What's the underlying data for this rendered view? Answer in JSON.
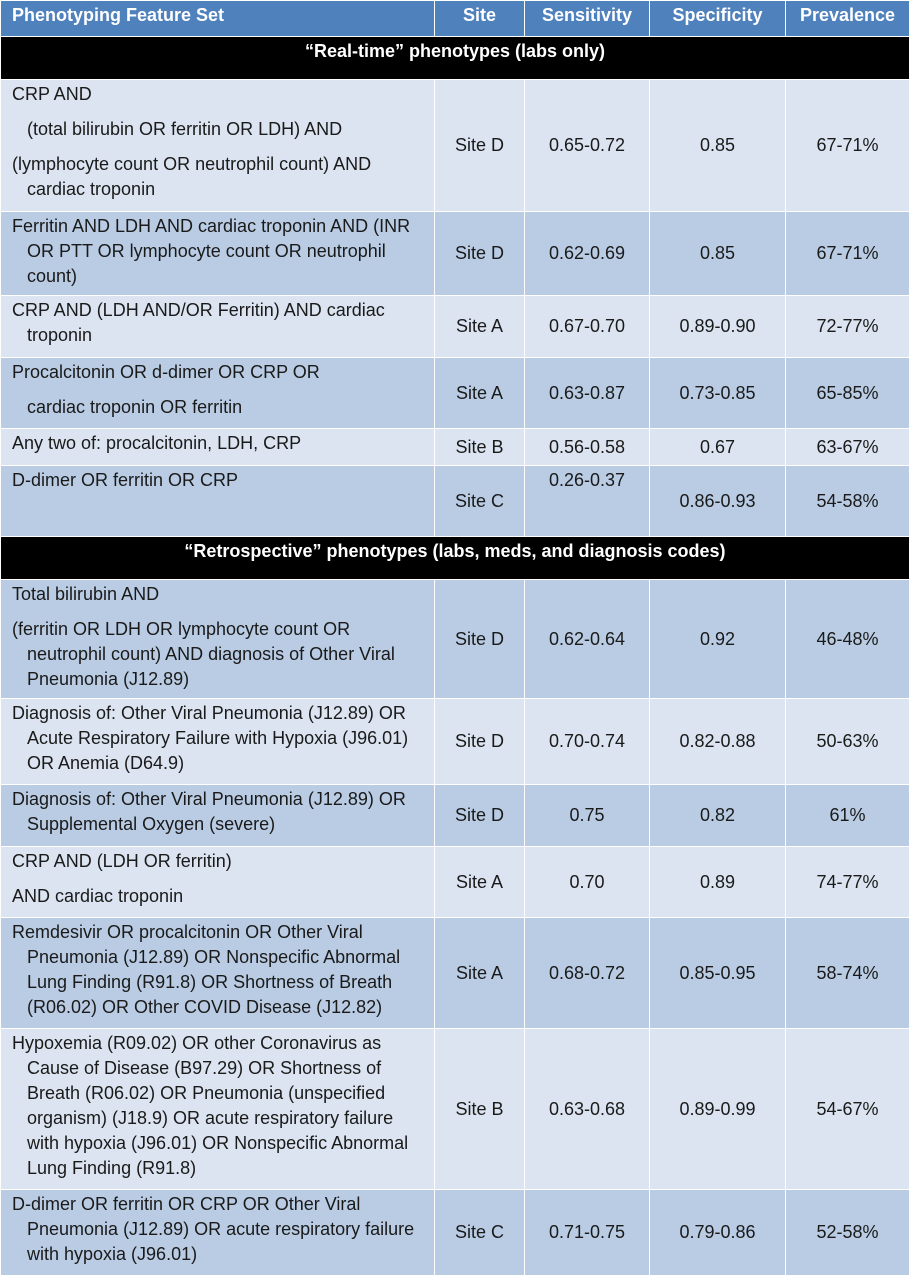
{
  "header": {
    "feature": "Phenotyping Feature Set",
    "site": "Site",
    "sensitivity": "Sensitivity",
    "specificity": "Specificity",
    "prevalence": "Prevalence"
  },
  "sections": {
    "realtime": "“Real-time” phenotypes (labs only)",
    "retro": "“Retrospective” phenotypes (labs, meds, and diagnosis codes)"
  },
  "rows": [
    {
      "f": [
        "CRP AND",
        "(total bilirubin OR ferritin OR LDH) AND",
        "(lymphocyte count OR neutrophil count) AND cardiac troponin"
      ],
      "site": "Site D",
      "sens": "0.65-0.72",
      "spec": "0.85",
      "prev": "67-71%"
    },
    {
      "f": [
        "Ferritin AND LDH AND cardiac troponin AND (INR OR PTT OR lymphocyte count OR neutrophil count)"
      ],
      "site": "Site D",
      "sens": "0.62-0.69",
      "spec": "0.85",
      "prev": "67-71%"
    },
    {
      "f": [
        "CRP AND (LDH AND/OR Ferritin)  AND cardiac troponin"
      ],
      "site": "Site A",
      "sens": "0.67-0.70",
      "spec": "0.89-0.90",
      "prev": "72-77%"
    },
    {
      "f": [
        "Procalcitonin OR d-dimer OR CRP OR",
        "cardiac troponin OR ferritin"
      ],
      "site": "Site A",
      "sens": "0.63-0.87",
      "spec": "0.73-0.85",
      "prev": "65-85%"
    },
    {
      "f": [
        "Any two of: procalcitonin, LDH, CRP"
      ],
      "site": "Site B",
      "sens": "0.56-0.58",
      "spec": "0.67",
      "prev": "63-67%"
    },
    {
      "f": [
        "D-dimer OR ferritin OR CRP"
      ],
      "site": "Site C",
      "sens": "0.26-0.37",
      "spec": "0.86-0.93",
      "prev": "54-58%"
    },
    {
      "f": [
        "Total bilirubin AND",
        "(ferritin OR LDH OR lymphocyte count OR neutrophil count) AND diagnosis of Other Viral Pneumonia (J12.89)"
      ],
      "site": "Site D",
      "sens": "0.62-0.64",
      "spec": "0.92",
      "prev": "46-48%"
    },
    {
      "f": [
        "Diagnosis of: Other Viral Pneumonia (J12.89) OR Acute Respiratory Failure with Hypoxia (J96.01) OR Anemia (D64.9)"
      ],
      "site": "Site D",
      "sens": "0.70-0.74",
      "spec": "0.82-0.88",
      "prev": "50-63%"
    },
    {
      "f": [
        "Diagnosis of: Other Viral Pneumonia (J12.89) OR Supplemental Oxygen (severe)"
      ],
      "site": "Site D",
      "sens": "0.75",
      "spec": "0.82",
      "prev": "61%"
    },
    {
      "f": [
        "CRP AND (LDH OR ferritin)",
        "AND cardiac troponin"
      ],
      "site": "Site A",
      "sens": "0.70",
      "spec": "0.89",
      "prev": "74-77%"
    },
    {
      "f": [
        "Remdesivir OR procalcitonin OR Other Viral Pneumonia (J12.89) OR Nonspecific Abnormal Lung Finding (R91.8) OR Shortness of Breath (R06.02) OR Other COVID Disease (J12.82)"
      ],
      "site": "Site A",
      "sens": "0.68-0.72",
      "spec": "0.85-0.95",
      "prev": "58-74%"
    },
    {
      "f": [
        "Hypoxemia (R09.02) OR other Coronavirus as Cause of Disease (B97.29) OR Shortness of Breath (R06.02) OR Pneumonia (unspecified organism) (J18.9) OR acute respiratory failure with hypoxia (J96.01) OR Nonspecific Abnormal Lung Finding (R91.8)"
      ],
      "site": "Site B",
      "sens": "0.63-0.68",
      "spec": "0.89-0.99",
      "prev": "54-67%"
    },
    {
      "f": [
        "D-dimer OR ferritin OR CRP OR Other Viral Pneumonia (J12.89) OR acute respiratory failure with hypoxia (J96.01)"
      ],
      "site": "Site C",
      "sens": "0.71-0.75",
      "spec": "0.79-0.86",
      "prev": "52-58%"
    }
  ]
}
